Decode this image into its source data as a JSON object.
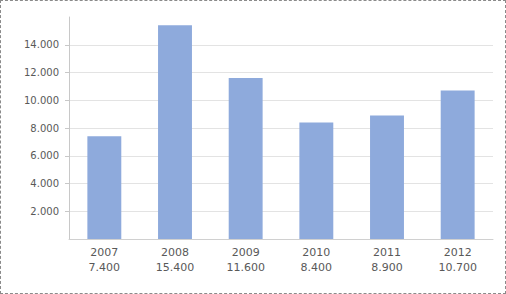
{
  "chart_data": {
    "type": "bar",
    "categories": [
      "2007",
      "2008",
      "2009",
      "2010",
      "2011",
      "2012"
    ],
    "values": [
      7400,
      15400,
      11600,
      8400,
      8900,
      10700
    ],
    "value_labels": [
      "7.400",
      "15.400",
      "11.600",
      "8.400",
      "8.900",
      "10.700"
    ],
    "color": "#8eaadc",
    "ylim": [
      0,
      16000
    ],
    "yticks": [
      {
        "value": 2000,
        "label": "2.000"
      },
      {
        "value": 4000,
        "label": "4.000"
      },
      {
        "value": 6000,
        "label": "6.000"
      },
      {
        "value": 8000,
        "label": "8.000"
      },
      {
        "value": 10000,
        "label": "10.000"
      },
      {
        "value": 12000,
        "label": "12.000"
      },
      {
        "value": 14000,
        "label": "14.000"
      }
    ],
    "grid": true
  }
}
